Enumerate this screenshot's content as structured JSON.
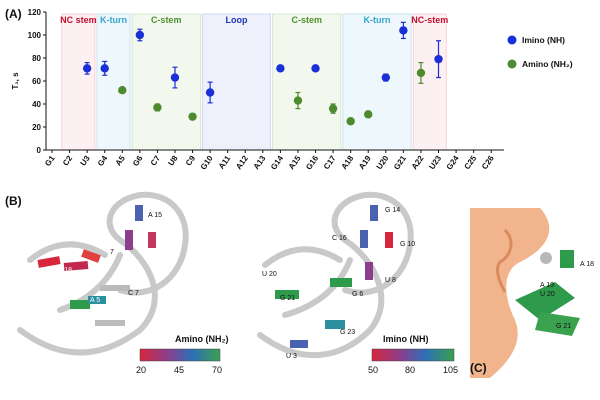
{
  "panel_labels": {
    "a": "(A)",
    "b": "(B)",
    "c": "(C)"
  },
  "chart_data": {
    "type": "scatter",
    "ylabel": "T₁, s",
    "ylim": [
      0,
      120
    ],
    "yticks": [
      0,
      20,
      40,
      60,
      80,
      100,
      120
    ],
    "categories": [
      "G1",
      "C2",
      "U3",
      "G4",
      "A5",
      "G6",
      "C7",
      "U8",
      "C9",
      "G10",
      "A11",
      "A12",
      "A13",
      "G14",
      "A15",
      "G16",
      "C17",
      "A18",
      "A19",
      "U20",
      "G21",
      "A22",
      "U23",
      "G24",
      "C25",
      "C26"
    ],
    "regions": [
      {
        "label": "NC stem",
        "start": 1,
        "end": 2,
        "fill": "#fdf0f2",
        "stroke": "#f3c9cf",
        "text_color": "#c0122f"
      },
      {
        "label": "K-turn",
        "start": 3,
        "end": 4,
        "fill": "#eef7fb",
        "stroke": "#bfdfee",
        "text_color": "#36a6cf"
      },
      {
        "label": "C-stem",
        "start": 5,
        "end": 8,
        "fill": "#f3f8ef",
        "stroke": "#cfe3c1",
        "text_color": "#4f8f2d"
      },
      {
        "label": "Loop",
        "start": 9,
        "end": 12,
        "fill": "#eef1fb",
        "stroke": "#c7d0f0",
        "text_color": "#1f35b3"
      },
      {
        "label": "C-stem",
        "start": 13,
        "end": 16,
        "fill": "#f3f8ef",
        "stroke": "#cfe3c1",
        "text_color": "#4f8f2d"
      },
      {
        "label": "K-turn",
        "start": 17,
        "end": 20,
        "fill": "#eef7fb",
        "stroke": "#bfdfee",
        "text_color": "#36a6cf"
      },
      {
        "label": "NC-stem",
        "start": 21,
        "end": 22,
        "fill": "#fdf0f2",
        "stroke": "#f3c9cf",
        "text_color": "#c0122f"
      }
    ],
    "series": [
      {
        "name": "Imino (NH)",
        "color": "#1a2fd6",
        "points": [
          {
            "x": "U3",
            "y": 71,
            "err": 5
          },
          {
            "x": "G4",
            "y": 71,
            "err": 6
          },
          {
            "x": "G6",
            "y": 100,
            "err": 5
          },
          {
            "x": "U8",
            "y": 63,
            "err": 9
          },
          {
            "x": "G10",
            "y": 50,
            "err": 9
          },
          {
            "x": "G14",
            "y": 71,
            "err": 2
          },
          {
            "x": "G16",
            "y": 71,
            "err": 2
          },
          {
            "x": "U20",
            "y": 63,
            "err": 3
          },
          {
            "x": "G21",
            "y": 104,
            "err": 7
          },
          {
            "x": "U23",
            "y": 79,
            "err": 16
          }
        ]
      },
      {
        "name": "Amino (NH₂)",
        "color": "#4e8a2e",
        "points": [
          {
            "x": "A5",
            "y": 52,
            "err": 2
          },
          {
            "x": "C7",
            "y": 37,
            "err": 3
          },
          {
            "x": "C9",
            "y": 29,
            "err": 2
          },
          {
            "x": "A15",
            "y": 43,
            "err": 7
          },
          {
            "x": "C17",
            "y": 36,
            "err": 4
          },
          {
            "x": "A18",
            "y": 25,
            "err": 2
          },
          {
            "x": "A19",
            "y": 31,
            "err": 2
          },
          {
            "x": "A22",
            "y": 67,
            "err": 9
          }
        ]
      }
    ],
    "legend_position": "right"
  },
  "colorbars": {
    "amino": {
      "title": "Amino (NH₂)",
      "ticks": [
        "20",
        "45",
        "70"
      ],
      "colors": [
        "#d7263d",
        "#8a3f8c",
        "#2c6fb8",
        "#3aa14f"
      ]
    },
    "imino": {
      "title": "Imino (NH)",
      "ticks": [
        "50",
        "80",
        "105"
      ],
      "colors": [
        "#d7263d",
        "#8a3f8c",
        "#2c6fb8",
        "#3aa14f"
      ]
    }
  },
  "structure_labels": {
    "left": [
      "A 15",
      "A 18",
      "C 7",
      "A 5",
      "7"
    ],
    "mid": [
      "G 14",
      "C 16",
      "G 10",
      "U 20",
      "U 8",
      "G 6",
      "G 21",
      "G 23",
      "U 3"
    ],
    "right": [
      "A 18",
      "A 19",
      "U 20",
      "G 21"
    ]
  }
}
